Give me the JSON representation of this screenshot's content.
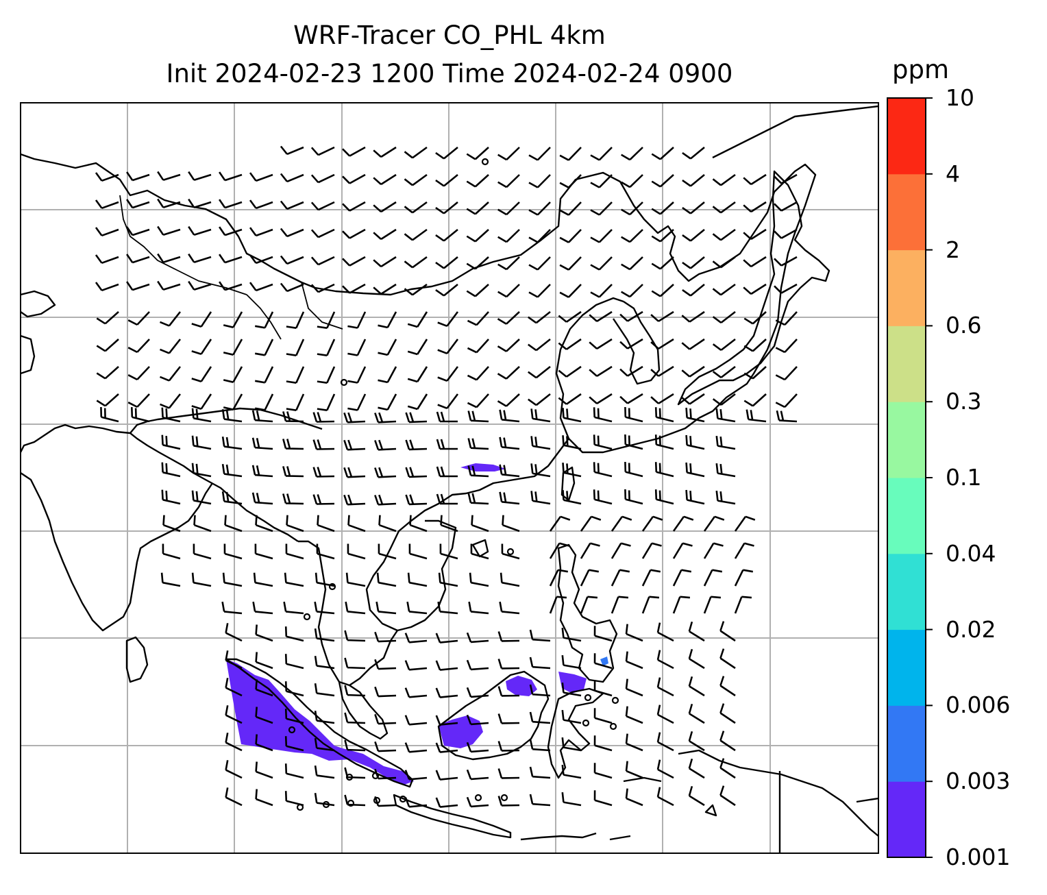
{
  "title": {
    "line1": "WRF-Tracer CO_PHL 4km",
    "line2": "Init 2024-02-23 1200 Time 2024-02-24 0900"
  },
  "colorbar": {
    "unit": "ppm",
    "levels": [
      "0.001",
      "0.003",
      "0.006",
      "0.02",
      "0.04",
      "0.1",
      "0.3",
      "0.6",
      "2",
      "4",
      "10"
    ],
    "colors": [
      "#6428f8",
      "#3278f4",
      "#00b4ec",
      "#30e0d4",
      "#68fcbc",
      "#98f8a0",
      "#cce088",
      "#fcb060",
      "#fc7038",
      "#fc2814"
    ]
  },
  "map": {
    "gridlines": true,
    "coastline_color": "#000000",
    "grid_color": "#b0b0b0",
    "tracer_color": "#6428f8",
    "overlay": "wind barbs"
  }
}
